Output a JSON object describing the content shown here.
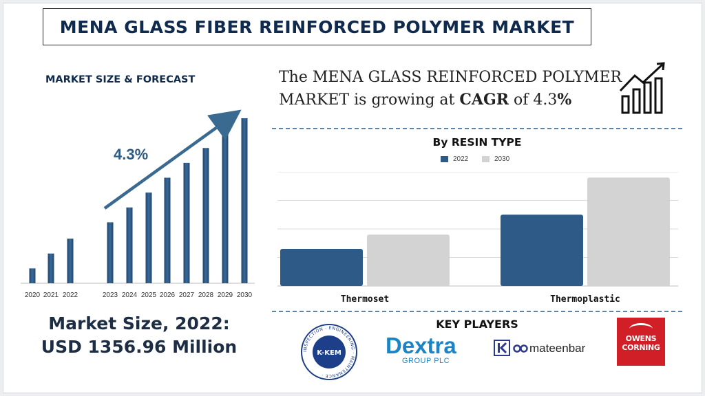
{
  "title": "MENA GLASS FIBER REINFORCED POLYMER MARKET",
  "forecast_section": {
    "title": "MARKET SIZE & FORECAST",
    "cagr_label": "4.3%"
  },
  "market_size": {
    "line1": "Market Size, 2022:",
    "line2": "USD 1356.96 Million"
  },
  "headline": {
    "line1": "The MENA GLASS REINFORCED POLYMER",
    "line2_pre": "MARKET is growing at ",
    "line2_bold": "CAGR",
    "line2_mid": " of 4.3",
    "line2_pct": "%"
  },
  "resin_section": {
    "title": "By RESIN TYPE"
  },
  "key_players": {
    "title": "KEY PLAYERS",
    "kkem": {
      "name": "K-KEM",
      "ring_text": "INSPECTION · ENGINEERING · MAINTENANCE ·"
    },
    "dextra": {
      "name": "Dextra",
      "sub": "GROUP PLC"
    },
    "mateenbar": {
      "name": "mateenbar"
    },
    "owens": {
      "line1": "OWENS",
      "line2": "CORNING"
    }
  },
  "colors": {
    "navy": "#2e5a87",
    "gray": "#d3d3d3",
    "title_navy": "#0f2a4d",
    "dextra_blue": "#1b84c6",
    "owens_red": "#d01f26"
  },
  "chart_data": [
    {
      "type": "bar",
      "categories": [
        "2020",
        "2021",
        "2022",
        "2023",
        "2024",
        "2025",
        "2026",
        "2027",
        "2028",
        "2029",
        "2030"
      ],
      "values": [
        0.1,
        0.2,
        0.3,
        0.41,
        0.51,
        0.61,
        0.71,
        0.81,
        0.91,
        1.01,
        1.11
      ],
      "annotations": [
        "4.3%"
      ],
      "grid": false,
      "color": "#2e5a87"
    },
    {
      "type": "bar",
      "title": "By RESIN TYPE",
      "categories": [
        "Thermoset",
        "Thermoplastic"
      ],
      "series": [
        {
          "name": "2022",
          "values": [
            26,
            50
          ],
          "color": "#2e5a87"
        },
        {
          "name": "2030",
          "values": [
            36,
            76
          ],
          "color": "#d3d3d3"
        }
      ],
      "ylim": [
        0,
        80
      ],
      "grid": true,
      "legend": "top-center"
    }
  ]
}
